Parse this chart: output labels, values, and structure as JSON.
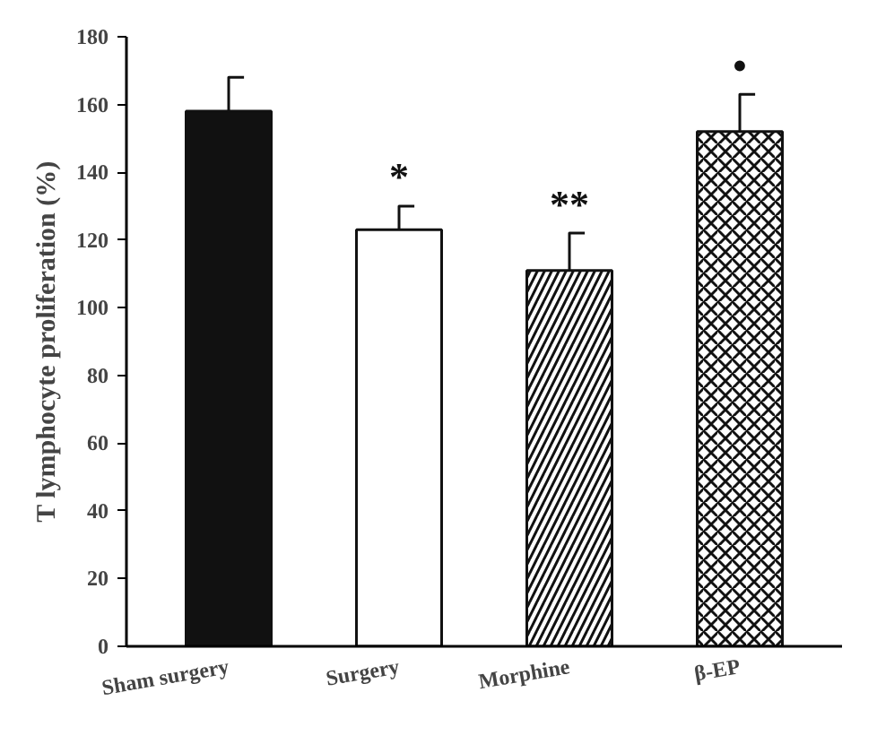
{
  "chart_data": {
    "type": "bar",
    "ylabel": "T lymphocyte proliferation (%)",
    "categories": [
      "Sham surgery",
      "Surgery",
      "Morphine",
      "β-EP"
    ],
    "values": [
      158,
      123,
      111,
      152
    ],
    "errors": [
      10,
      7,
      11,
      11
    ],
    "colors": [
      "#111111",
      "#ffffff",
      "#ffffff",
      "#ffffff"
    ],
    "ylim": [
      0,
      180
    ],
    "yticks": [
      0,
      20,
      40,
      60,
      80,
      100,
      120,
      140,
      160,
      180
    ],
    "grid": false,
    "annotations": [
      "*",
      "**",
      "•"
    ]
  }
}
